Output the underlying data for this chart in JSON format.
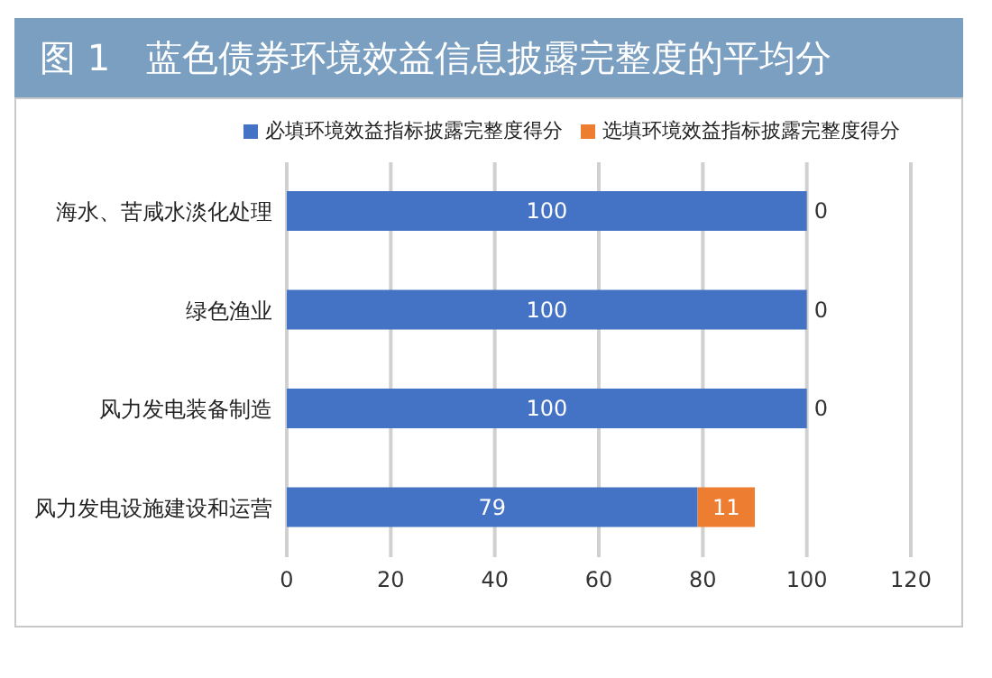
{
  "chart_data": {
    "type": "bar",
    "orientation": "horizontal",
    "stacked": true,
    "title": "图 1　蓝色债券环境效益信息披露完整度的平均分",
    "categories": [
      "海水、苦咸水淡化处理",
      "绿色渔业",
      "风力发电装备制造",
      "风力发电设施建设和运营"
    ],
    "series": [
      {
        "name": "必填环境效益指标披露完整度得分",
        "color": "#4472c4",
        "values": [
          100,
          100,
          100,
          79
        ]
      },
      {
        "name": "选填环境效益指标披露完整度得分",
        "color": "#ed7d31",
        "values": [
          0,
          0,
          0,
          11
        ]
      }
    ],
    "xlim": [
      0,
      120
    ],
    "xticks": [
      0,
      20,
      40,
      60,
      80,
      100,
      120
    ],
    "grid": "x",
    "legend": "top right",
    "data_labels": true
  }
}
